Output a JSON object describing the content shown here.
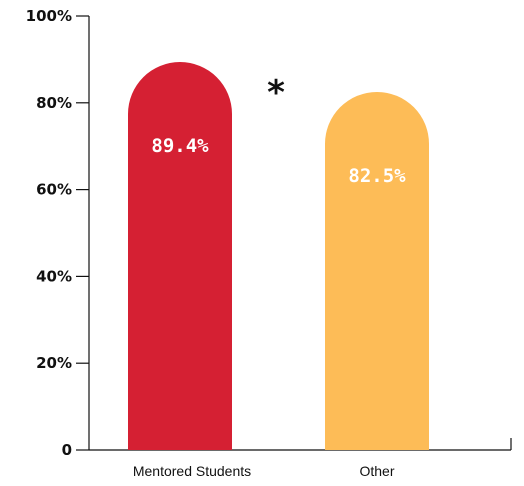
{
  "chart_data": {
    "type": "bar",
    "title": "",
    "xlabel": "",
    "ylabel": "",
    "categories": [
      "Mentored Students",
      "Other"
    ],
    "values": [
      89.4,
      82.5
    ],
    "data_labels": [
      "89.4%",
      "82.5%"
    ],
    "colors": [
      "#d52033",
      "#fdbc57"
    ],
    "ylim": [
      0,
      100
    ],
    "yticks": [
      0,
      20,
      40,
      60,
      80,
      100
    ],
    "ytick_labels": [
      "0",
      "20%",
      "40%",
      "60%",
      "80%",
      "100%"
    ],
    "annotation": "*",
    "grid": false,
    "legend": "none",
    "bar_style": "rounded-top"
  }
}
